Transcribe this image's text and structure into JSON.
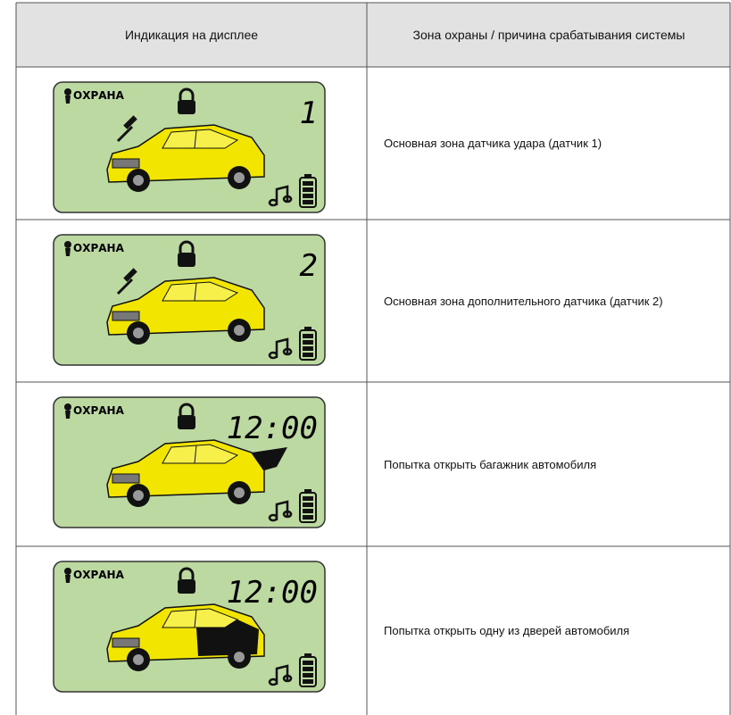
{
  "header": {
    "columns": [
      "Индикация на дисплее",
      "Зона охраны / причина срабатывания системы"
    ]
  },
  "rows": [
    {
      "display": {
        "status": "ОХРАНА",
        "indicator": "1"
      },
      "description": "Основная зона датчика удара (датчик 1)"
    },
    {
      "display": {
        "status": "ОХРАНА",
        "indicator": "2"
      },
      "description": "Основная зона дополнительного датчика (датчик 2)"
    },
    {
      "display": {
        "status": "ОХРАНА",
        "indicator": "12:00"
      },
      "description": "Попытка открыть багажник автомобиля"
    },
    {
      "display": {
        "status": "ОХРАНА",
        "indicator": "12:00"
      },
      "description": "Попытка открыть одну из дверей автомобиля"
    }
  ]
}
